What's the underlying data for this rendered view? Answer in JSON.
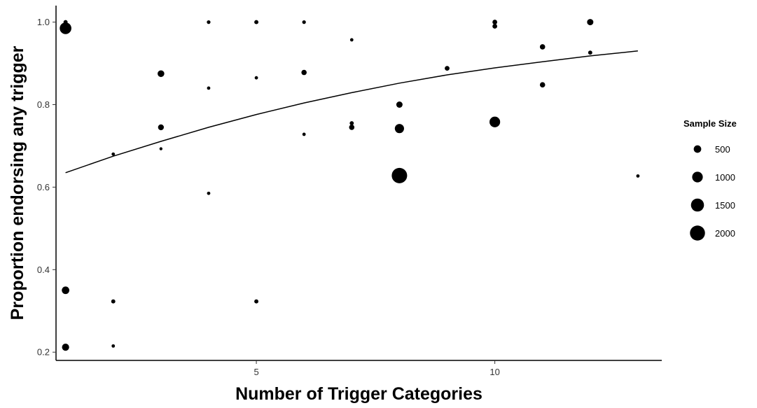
{
  "chart_data": {
    "type": "scatter",
    "xlabel": "Number of Trigger Categories",
    "ylabel": "Proportion endorsing any trigger",
    "xlim": [
      0.8,
      13.5
    ],
    "ylim": [
      0.18,
      1.04
    ],
    "x_ticks": [
      5,
      10
    ],
    "x_tick_labels": [
      "5",
      "10"
    ],
    "y_ticks": [
      0.2,
      0.4,
      0.6,
      0.8,
      1.0
    ],
    "y_tick_labels": [
      "0.2",
      "0.4",
      "0.6",
      "0.8",
      "1.0"
    ],
    "grid": false,
    "legend": {
      "title": "Sample Size",
      "position": "right",
      "entries": [
        {
          "label": "500",
          "size": 500
        },
        {
          "label": "1000",
          "size": 1000
        },
        {
          "label": "1500",
          "size": 1500
        },
        {
          "label": "2000",
          "size": 2000
        }
      ]
    },
    "points": [
      {
        "x": 1,
        "y": 1.0,
        "size": 150
      },
      {
        "x": 1,
        "y": 0.985,
        "size": 1200
      },
      {
        "x": 1,
        "y": 0.35,
        "size": 500
      },
      {
        "x": 1,
        "y": 0.212,
        "size": 450
      },
      {
        "x": 2,
        "y": 0.68,
        "size": 100
      },
      {
        "x": 2,
        "y": 0.323,
        "size": 150
      },
      {
        "x": 2,
        "y": 0.215,
        "size": 100
      },
      {
        "x": 3,
        "y": 0.875,
        "size": 400
      },
      {
        "x": 3,
        "y": 0.745,
        "size": 300
      },
      {
        "x": 3,
        "y": 0.693,
        "size": 80
      },
      {
        "x": 4,
        "y": 1.0,
        "size": 120
      },
      {
        "x": 4,
        "y": 0.84,
        "size": 100
      },
      {
        "x": 4,
        "y": 0.585,
        "size": 100
      },
      {
        "x": 5,
        "y": 1.0,
        "size": 150
      },
      {
        "x": 5,
        "y": 0.865,
        "size": 100
      },
      {
        "x": 5,
        "y": 0.323,
        "size": 150
      },
      {
        "x": 6,
        "y": 1.0,
        "size": 120
      },
      {
        "x": 6,
        "y": 0.878,
        "size": 250
      },
      {
        "x": 6,
        "y": 0.728,
        "size": 100
      },
      {
        "x": 7,
        "y": 0.957,
        "size": 100
      },
      {
        "x": 7,
        "y": 0.755,
        "size": 150
      },
      {
        "x": 7,
        "y": 0.745,
        "size": 250
      },
      {
        "x": 8,
        "y": 0.8,
        "size": 350
      },
      {
        "x": 8,
        "y": 0.742,
        "size": 750
      },
      {
        "x": 8,
        "y": 0.628,
        "size": 2100
      },
      {
        "x": 9,
        "y": 0.888,
        "size": 200
      },
      {
        "x": 10,
        "y": 1.0,
        "size": 200
      },
      {
        "x": 10,
        "y": 0.99,
        "size": 200
      },
      {
        "x": 10,
        "y": 0.758,
        "size": 1000
      },
      {
        "x": 11,
        "y": 0.94,
        "size": 250
      },
      {
        "x": 11,
        "y": 0.848,
        "size": 250
      },
      {
        "x": 12,
        "y": 1.0,
        "size": 350
      },
      {
        "x": 12,
        "y": 0.926,
        "size": 150
      },
      {
        "x": 13,
        "y": 0.627,
        "size": 100
      }
    ],
    "fit_line": {
      "x": [
        1,
        2,
        3,
        4,
        5,
        6,
        7,
        8,
        9,
        10,
        11,
        12,
        13
      ],
      "y": [
        0.635,
        0.675,
        0.711,
        0.745,
        0.776,
        0.804,
        0.829,
        0.852,
        0.872,
        0.889,
        0.904,
        0.918,
        0.93
      ]
    },
    "colors": {
      "points": "#000000",
      "fit_line": "#000000",
      "axis": "#000000"
    }
  }
}
